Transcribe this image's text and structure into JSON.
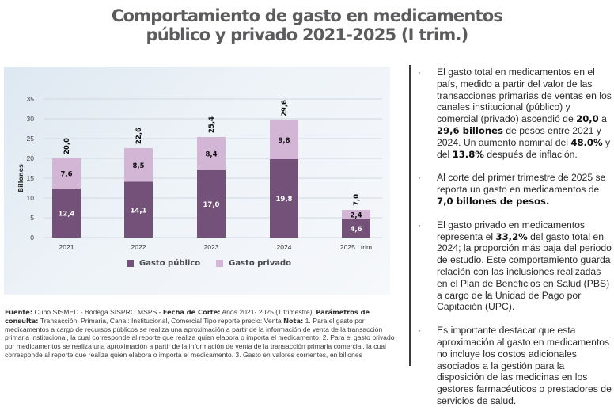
{
  "title": {
    "line1": "Comportamiento de gasto en medicamentos",
    "line2": "público y privado 2021-2025 (I trim.)"
  },
  "colors": {
    "publico": "#735179",
    "privado": "#d3b6d6",
    "grid": "#d2d8de",
    "text": "#333333"
  },
  "chart_data": {
    "type": "bar",
    "stacked": true,
    "title": "Comportamiento de gasto en medicamentos público y privado 2021-2025 (I trim.)",
    "xlabel": "",
    "ylabel": "Billones",
    "ylim": [
      0,
      35
    ],
    "yticks": [
      0,
      5,
      10,
      15,
      20,
      25,
      30,
      35
    ],
    "grid": true,
    "legend_position": "bottom",
    "categories": [
      "2021",
      "2022",
      "2023",
      "2024",
      "2025 I trim"
    ],
    "series": [
      {
        "name": "Gasto público",
        "values": [
          12.4,
          14.1,
          17.0,
          19.8,
          4.6
        ],
        "labels": [
          "12,4",
          "14,1",
          "17,0",
          "19,8",
          "4,6"
        ]
      },
      {
        "name": "Gasto privado",
        "values": [
          7.6,
          8.5,
          8.4,
          9.8,
          2.4
        ],
        "labels": [
          "7,6",
          "8,5",
          "8,4",
          "9,8",
          "2,4"
        ]
      }
    ],
    "totals": [
      20.0,
      22.6,
      25.4,
      29.6,
      7.0
    ],
    "total_labels": [
      "20,0",
      "22,6",
      "25,4",
      "29,6",
      "7,0"
    ]
  },
  "legend": {
    "publico": "Gasto público",
    "privado": "Gasto privado"
  },
  "notes": {
    "fuente_label": "Fuente:",
    "fuente_text": " Cubo SISMED - Bodega SISPRO MSPS - ",
    "fecha_label": "Fecha de Corte:",
    "fecha_text": " Años 2021- 2025 (1 trimestre). ",
    "param_label": "Parámetros de consulta:",
    "param_text": " Transacción: Primaria, Canal: Institucional, Comercial  Tipo reporte precio: Venta ",
    "nota_label": "Nota:",
    "nota_text": " 1. Para el gasto por  medicamentos a cargo de recursos públicos se realiza una aproximación a partir de la información de venta de la transacción primaria institucional, la cual corresponde al reporte que realiza quien elabora  o importa el medicamento. 2. Para el gasto privado por  medicamentos se realiza una aproximación a partir de la información de venta de la transacción primaria comercial, la cual corresponde al reporte que realiza quien elabora  o importa el medicamento. 3. Gasto en valores corrientes, en billones"
  },
  "bullets": {
    "b1": {
      "t1": "El gasto total en medicamentos en el país, medido a partir del valor de las transacciones primarias de ventas en los canales institucional (público) y comercial (privado) ascendió de ",
      "v1": "20,0",
      "t2": " a ",
      "v2": "29,6 billones",
      "t3": " de pesos entre 2021 y 2024. Un aumento nominal del ",
      "v3": "48.0%",
      "t4": " y del ",
      "v4": "13.8%",
      "t5": " después de inflación."
    },
    "b2": {
      "t1": "Al corte del  primer trimestre de 2025 se reporta un gasto en medicamentos de ",
      "v1": "7,0 billones de pesos."
    },
    "b3": {
      "t1": "El gasto privado en medicamentos representa el  ",
      "v1": "33,2%",
      "t2": " del gasto total en 2024; la proporción más baja del periodo de estudio. Este comportamiento guarda relación con las inclusiones realizadas en el Plan de Beneficios en Salud (PBS) a cargo de la Unidad de Pago por Capitación (UPC)."
    },
    "b4": {
      "t1": "Es importante destacar que esta aproximación al gasto en medicamentos no incluye los costos adicionales asociados a la gestión para la disposición de las medicinas en los gestores farmacéuticos o prestadores de servicios de salud."
    },
    "marker": "·"
  }
}
